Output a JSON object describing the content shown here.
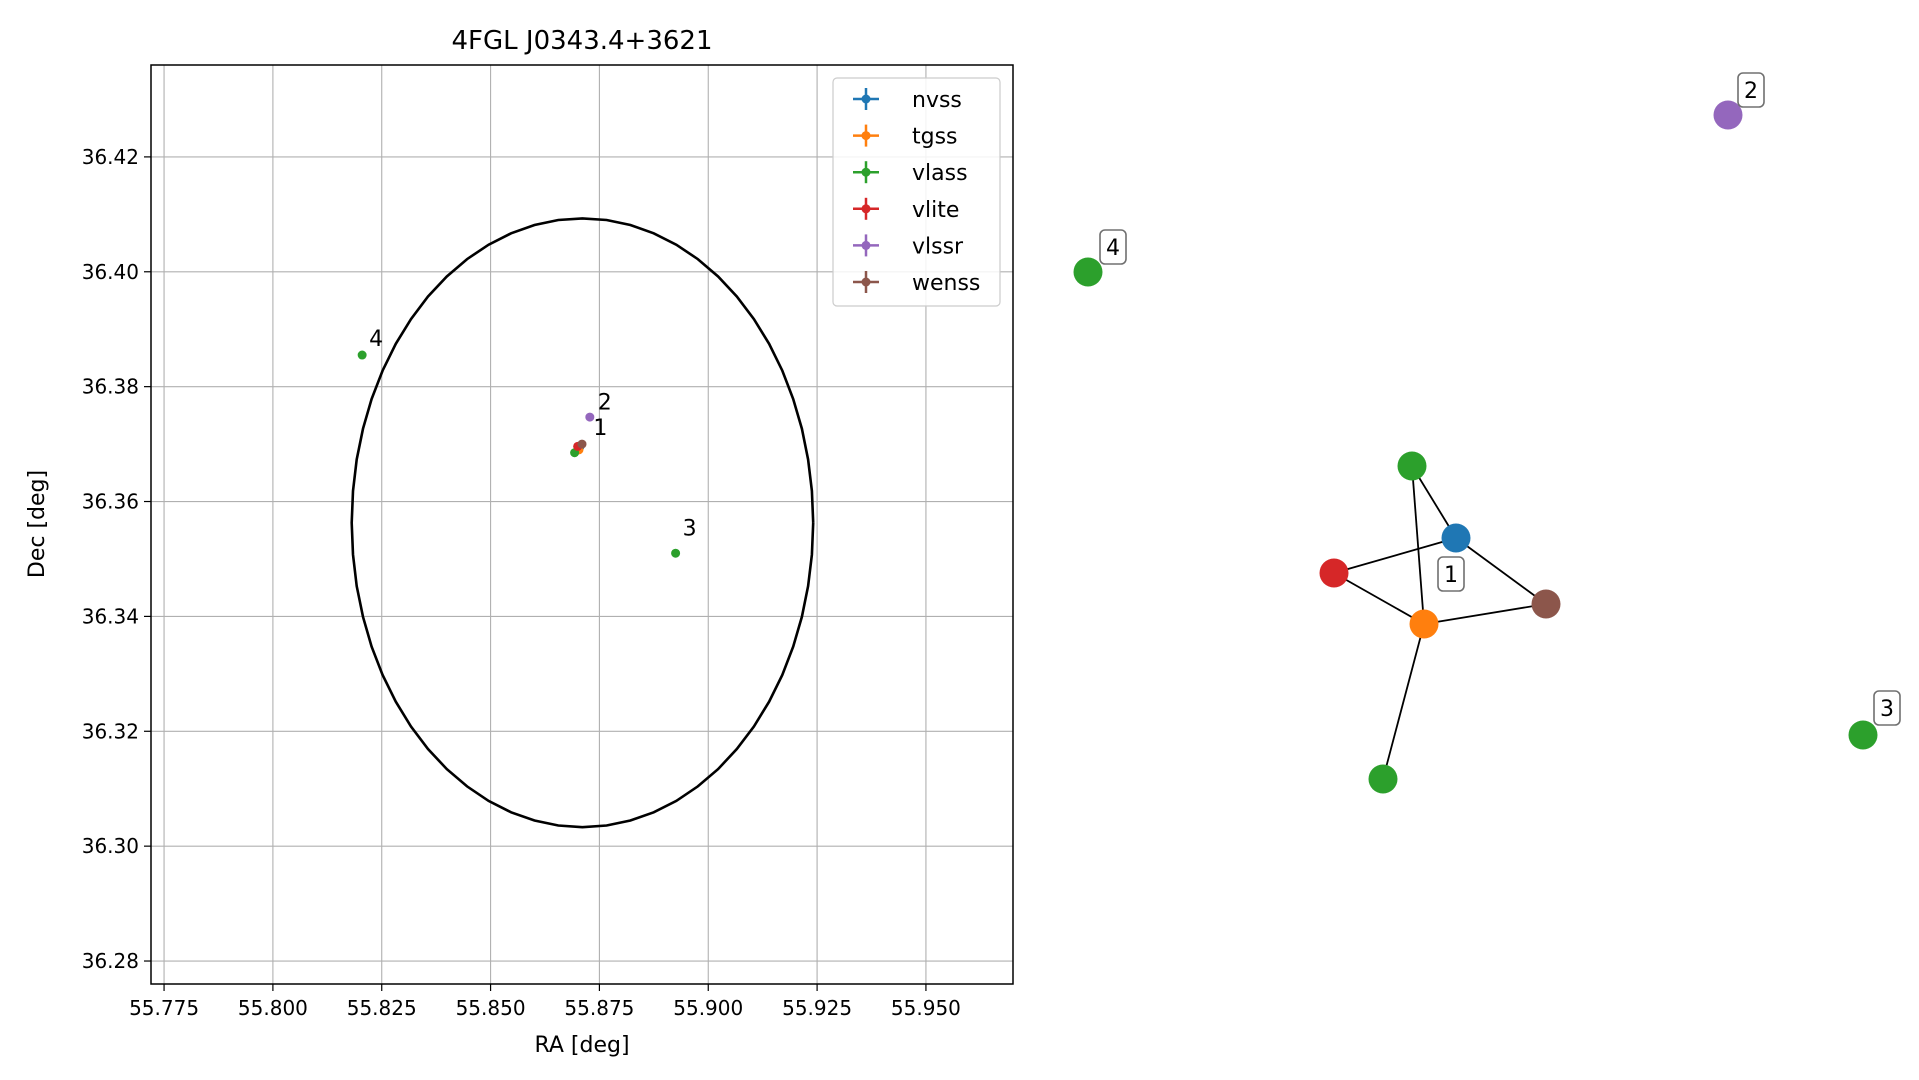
{
  "chart_data": [
    {
      "type": "scatter",
      "title": "4FGL J0343.4+3621",
      "xlabel": "RA [deg]",
      "ylabel": "Dec [deg]",
      "xlim": [
        55.772,
        55.97
      ],
      "ylim": [
        36.276,
        36.436
      ],
      "xticks": [
        "55.775",
        "55.800",
        "55.825",
        "55.850",
        "55.875",
        "55.900",
        "55.925",
        "55.950"
      ],
      "yticks": [
        "36.28",
        "36.30",
        "36.32",
        "36.34",
        "36.36",
        "36.38",
        "36.40",
        "36.42"
      ],
      "grid": true,
      "legend_position": "top-right",
      "circle": {
        "center": [
          55.8711,
          36.3563
        ],
        "radius_deg": 0.053
      },
      "series": [
        {
          "name": "nvss",
          "color": "#1f77b4",
          "points": [
            [
              55.8705,
              36.3695
            ]
          ]
        },
        {
          "name": "tgss",
          "color": "#ff7f0e",
          "points": [
            [
              55.8703,
              36.369
            ]
          ]
        },
        {
          "name": "vlass",
          "color": "#2ca02c",
          "points": [
            [
              55.8693,
              36.3685
            ],
            [
              55.8925,
              36.351
            ],
            [
              55.8205,
              36.3855
            ]
          ]
        },
        {
          "name": "vlite",
          "color": "#d62728",
          "points": [
            [
              55.87,
              36.3696
            ]
          ]
        },
        {
          "name": "vlssr",
          "color": "#9467bd",
          "points": [
            [
              55.8728,
              36.3747
            ]
          ]
        },
        {
          "name": "wenss",
          "color": "#8c564b",
          "points": [
            [
              55.871,
              36.37
            ]
          ]
        }
      ],
      "annotations": [
        {
          "text": "1",
          "x": 55.872,
          "y": 36.3705
        },
        {
          "text": "2",
          "x": 55.873,
          "y": 36.375
        },
        {
          "text": "3",
          "x": 55.8925,
          "y": 36.353
        },
        {
          "text": "4",
          "x": 55.8205,
          "y": 36.386
        }
      ]
    },
    {
      "type": "network",
      "nodes": [
        {
          "id": "vlass-a",
          "color": "#2ca02c"
        },
        {
          "id": "nvss",
          "color": "#1f77b4"
        },
        {
          "id": "vlite",
          "color": "#d62728"
        },
        {
          "id": "tgss",
          "color": "#ff7f0e"
        },
        {
          "id": "wenss",
          "color": "#8c564b"
        },
        {
          "id": "vlass-b",
          "color": "#2ca02c"
        },
        {
          "id": "vlssr",
          "color": "#9467bd"
        },
        {
          "id": "vlass-c",
          "color": "#2ca02c"
        },
        {
          "id": "vlass-d",
          "color": "#2ca02c"
        }
      ],
      "edges": [
        [
          "vlass-a",
          "nvss"
        ],
        [
          "vlass-a",
          "tgss"
        ],
        [
          "nvss",
          "vlite"
        ],
        [
          "nvss",
          "wenss"
        ],
        [
          "vlite",
          "tgss"
        ],
        [
          "tgss",
          "wenss"
        ],
        [
          "tgss",
          "vlass-b"
        ]
      ],
      "group_labels": [
        {
          "text": "1",
          "near": "tgss"
        },
        {
          "text": "2",
          "near": "vlssr"
        },
        {
          "text": "3",
          "near": "vlass-c"
        },
        {
          "text": "4",
          "near": "vlass-d"
        }
      ]
    }
  ]
}
